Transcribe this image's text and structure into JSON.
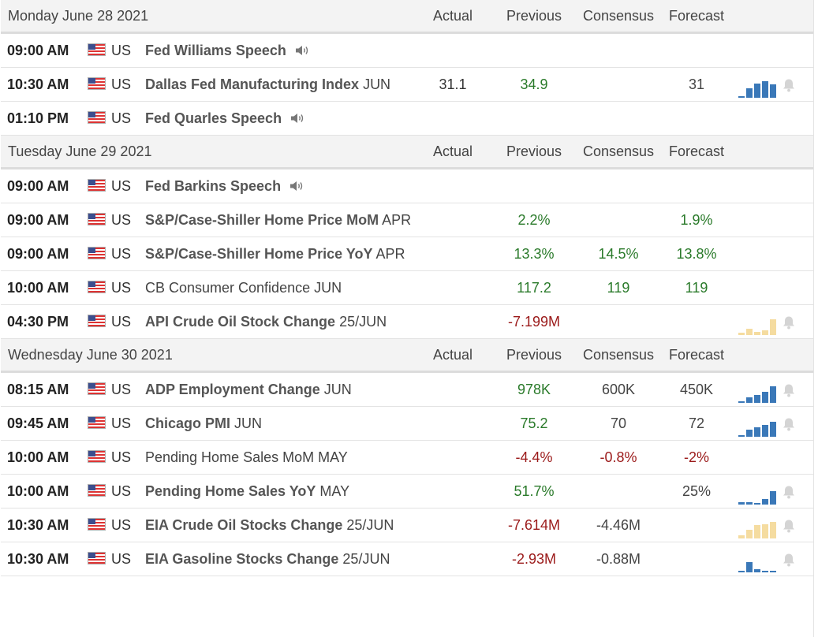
{
  "columns": {
    "actual": "Actual",
    "previous": "Previous",
    "consensus": "Consensus",
    "forecast": "Forecast"
  },
  "colors": {
    "bar_blue": "#3a78b8",
    "bar_tan": "#f5dca0",
    "positive": "#2a7a2a",
    "negative": "#9b1a1a",
    "header_bg": "#f3f3f3"
  },
  "icons": {
    "flag": "us-flag-icon",
    "speech": "speaker-icon",
    "alert": "bell-icon"
  },
  "days": [
    {
      "title": "Monday June 28 2021",
      "events": [
        {
          "time": "09:00 AM",
          "country": "US",
          "name": "Fed Williams Speech",
          "period": "",
          "bold": true,
          "speech": true,
          "actual": "",
          "previous": "",
          "previous_tone": "",
          "consensus": "",
          "consensus_tone": "",
          "forecast": "",
          "forecast_tone": "",
          "chart": null,
          "bell": false
        },
        {
          "time": "10:30 AM",
          "country": "US",
          "name": "Dallas Fed Manufacturing Index",
          "period": "JUN",
          "bold": true,
          "speech": false,
          "actual": "31.1",
          "previous": "34.9",
          "previous_tone": "pos",
          "consensus": "",
          "consensus_tone": "",
          "forecast": "31",
          "forecast_tone": "neu",
          "chart": {
            "color": "blue",
            "values": [
              0.1,
              0.55,
              0.8,
              0.95,
              0.75
            ]
          },
          "bell": true
        },
        {
          "time": "01:10 PM",
          "country": "US",
          "name": "Fed Quarles Speech",
          "period": "",
          "bold": true,
          "speech": true,
          "actual": "",
          "previous": "",
          "previous_tone": "",
          "consensus": "",
          "consensus_tone": "",
          "forecast": "",
          "forecast_tone": "",
          "chart": null,
          "bell": false
        }
      ]
    },
    {
      "title": "Tuesday June 29 2021",
      "events": [
        {
          "time": "09:00 AM",
          "country": "US",
          "name": "Fed Barkins Speech",
          "period": "",
          "bold": true,
          "speech": true,
          "actual": "",
          "previous": "",
          "previous_tone": "",
          "consensus": "",
          "consensus_tone": "",
          "forecast": "",
          "forecast_tone": "",
          "chart": null,
          "bell": false
        },
        {
          "time": "09:00 AM",
          "country": "US",
          "name": "S&P/Case-Shiller Home Price MoM",
          "period": "APR",
          "bold": true,
          "speech": false,
          "actual": "",
          "previous": "2.2%",
          "previous_tone": "pos",
          "consensus": "",
          "consensus_tone": "",
          "forecast": "1.9%",
          "forecast_tone": "pos",
          "chart": null,
          "bell": false
        },
        {
          "time": "09:00 AM",
          "country": "US",
          "name": "S&P/Case-Shiller Home Price YoY",
          "period": "APR",
          "bold": true,
          "speech": false,
          "actual": "",
          "previous": "13.3%",
          "previous_tone": "pos",
          "consensus": "14.5%",
          "consensus_tone": "pos",
          "forecast": "13.8%",
          "forecast_tone": "pos",
          "chart": null,
          "bell": false
        },
        {
          "time": "10:00 AM",
          "country": "US",
          "name": "CB Consumer Confidence",
          "period": "JUN",
          "bold": false,
          "speech": false,
          "actual": "",
          "previous": "117.2",
          "previous_tone": "pos",
          "consensus": "119",
          "consensus_tone": "pos",
          "forecast": "119",
          "forecast_tone": "pos",
          "chart": null,
          "bell": false
        },
        {
          "time": "04:30 PM",
          "country": "US",
          "name": "API Crude Oil Stock Change",
          "period": "25/JUN",
          "bold": true,
          "speech": false,
          "actual": "",
          "previous": "-7.199M",
          "previous_tone": "neg",
          "consensus": "",
          "consensus_tone": "",
          "forecast": "",
          "forecast_tone": "",
          "chart": {
            "color": "tan",
            "values": [
              0.15,
              0.35,
              0.2,
              0.25,
              0.9
            ]
          },
          "bell": true
        }
      ]
    },
    {
      "title": "Wednesday June 30 2021",
      "events": [
        {
          "time": "08:15 AM",
          "country": "US",
          "name": "ADP Employment Change",
          "period": "JUN",
          "bold": true,
          "speech": false,
          "actual": "",
          "previous": "978K",
          "previous_tone": "pos",
          "consensus": "600K",
          "consensus_tone": "neu",
          "forecast": "450K",
          "forecast_tone": "neu",
          "chart": {
            "color": "blue",
            "values": [
              0.1,
              0.3,
              0.45,
              0.65,
              0.95
            ]
          },
          "bell": true
        },
        {
          "time": "09:45 AM",
          "country": "US",
          "name": "Chicago PMI",
          "period": "JUN",
          "bold": true,
          "speech": false,
          "actual": "",
          "previous": "75.2",
          "previous_tone": "pos",
          "consensus": "70",
          "consensus_tone": "neu",
          "forecast": "72",
          "forecast_tone": "neu",
          "chart": {
            "color": "blue",
            "values": [
              0.1,
              0.4,
              0.55,
              0.7,
              0.85
            ]
          },
          "bell": true
        },
        {
          "time": "10:00 AM",
          "country": "US",
          "name": "Pending Home Sales MoM",
          "period": "MAY",
          "bold": false,
          "speech": false,
          "actual": "",
          "previous": "-4.4%",
          "previous_tone": "neg",
          "consensus": "-0.8%",
          "consensus_tone": "neg",
          "forecast": "-2%",
          "forecast_tone": "neg",
          "chart": null,
          "bell": false
        },
        {
          "time": "10:00 AM",
          "country": "US",
          "name": "Pending Home Sales YoY",
          "period": "MAY",
          "bold": true,
          "speech": false,
          "actual": "",
          "previous": "51.7%",
          "previous_tone": "pos",
          "consensus": "",
          "consensus_tone": "",
          "forecast": "25%",
          "forecast_tone": "neu",
          "chart": {
            "color": "blue",
            "values": [
              0.15,
              0.15,
              0.1,
              0.3,
              0.75
            ]
          },
          "bell": true
        },
        {
          "time": "10:30 AM",
          "country": "US",
          "name": "EIA Crude Oil Stocks Change",
          "period": "25/JUN",
          "bold": true,
          "speech": false,
          "actual": "",
          "previous": "-7.614M",
          "previous_tone": "neg",
          "consensus": "-4.46M",
          "consensus_tone": "neu",
          "forecast": "",
          "forecast_tone": "",
          "chart": {
            "color": "tan",
            "values": [
              0.2,
              0.5,
              0.75,
              0.8,
              0.95
            ]
          },
          "bell": true
        },
        {
          "time": "10:30 AM",
          "country": "US",
          "name": "EIA Gasoline Stocks Change",
          "period": "25/JUN",
          "bold": true,
          "speech": false,
          "actual": "",
          "previous": "-2.93M",
          "previous_tone": "neg",
          "consensus": "-0.88M",
          "consensus_tone": "neu",
          "forecast": "",
          "forecast_tone": "",
          "chart": {
            "color": "blue",
            "values": [
              0.1,
              0.6,
              0.2,
              0.1,
              0.1
            ]
          },
          "bell": true
        }
      ]
    }
  ]
}
